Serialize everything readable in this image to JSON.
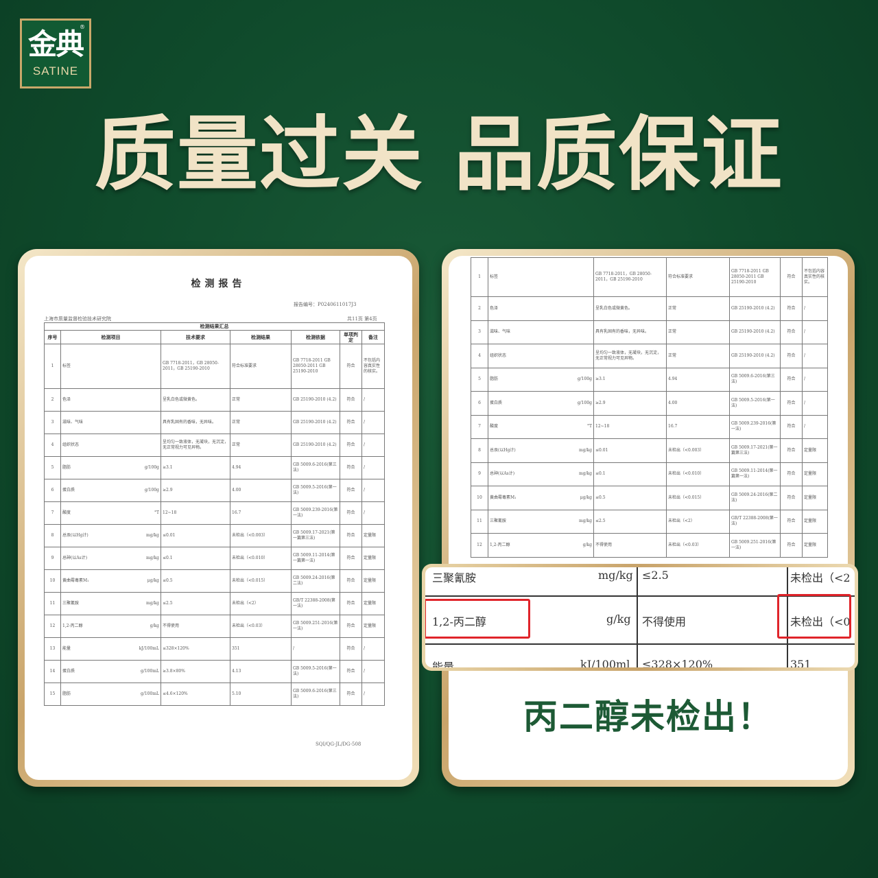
{
  "brand": {
    "name_cn": "金典",
    "name_en": "SATINE",
    "reg": "®"
  },
  "headline": {
    "left": "质量过关",
    "right": "品质保证"
  },
  "report": {
    "title": "检测报告",
    "report_no": "报告编号：P0240611017J3",
    "org": "上海市质量监督检验技术研究院",
    "pages": "共11页 第4页",
    "caption": "检测结果汇总",
    "footer": "SQI/QG-JL/DG-508",
    "headers": [
      "序号",
      "检测项目",
      "技术要求",
      "检测结果",
      "检测依据",
      "单项判定",
      "备注"
    ],
    "rows": [
      {
        "seq": "1",
        "item": "标签",
        "unit": "",
        "tech": "GB 7718-2011，GB 28050-2011，GB 25190-2010",
        "result": "符合标准要求",
        "basis": "GB 7718-2011 GB 28050-2011 GB 25190-2010",
        "judge": "符合",
        "note": "不包括内容真实性的核实。"
      },
      {
        "seq": "2",
        "item": "色泽",
        "unit": "",
        "tech": "呈乳白色或微黄色。",
        "result": "正常",
        "basis": "GB 25190-2010 (4.2)",
        "judge": "符合",
        "note": "/"
      },
      {
        "seq": "3",
        "item": "滋味、气味",
        "unit": "",
        "tech": "具有乳固有的香味，无异味。",
        "result": "正常",
        "basis": "GB 25190-2010 (4.2)",
        "judge": "符合",
        "note": "/"
      },
      {
        "seq": "4",
        "item": "组织状态",
        "unit": "",
        "tech": "呈均匀一致液体，无凝块，无沉淀，无正常视力可见异物。",
        "result": "正常",
        "basis": "GB 25190-2010 (4.2)",
        "judge": "符合",
        "note": "/"
      },
      {
        "seq": "5",
        "item": "脂肪",
        "unit": "g/100g",
        "tech": "≥3.1",
        "result": "4.94",
        "basis": "GB 5009.6-2016(第三法)",
        "judge": "符合",
        "note": "/"
      },
      {
        "seq": "6",
        "item": "蛋白质",
        "unit": "g/100g",
        "tech": "≥2.9",
        "result": "4.00",
        "basis": "GB 5009.5-2016(第一法)",
        "judge": "符合",
        "note": "/"
      },
      {
        "seq": "7",
        "item": "酸度",
        "unit": "°T",
        "tech": "12~18",
        "result": "16.7",
        "basis": "GB 5009.239-2016(第一法)",
        "judge": "符合",
        "note": "/"
      },
      {
        "seq": "8",
        "item": "总汞(以Hg计)",
        "unit": "mg/kg",
        "tech": "≤0.01",
        "result": "未检出（<0.003）",
        "basis": "GB 5009.17-2021(第一篇第三法)",
        "judge": "符合",
        "note": "定量限"
      },
      {
        "seq": "9",
        "item": "总砷(以As计)",
        "unit": "mg/kg",
        "tech": "≤0.1",
        "result": "未检出（<0.010）",
        "basis": "GB 5009.11-2014(第一篇第一法)",
        "judge": "符合",
        "note": "定量限"
      },
      {
        "seq": "10",
        "item": "黄曲霉毒素M₁",
        "unit": "μg/kg",
        "tech": "≤0.5",
        "result": "未检出（<0.015）",
        "basis": "GB 5009.24-2016(第二法)",
        "judge": "符合",
        "note": "定量限"
      },
      {
        "seq": "11",
        "item": "三聚氰胺",
        "unit": "mg/kg",
        "tech": "≤2.5",
        "result": "未检出（<2）",
        "basis": "GB/T 22388-2008(第一法)",
        "judge": "符合",
        "note": "定量限"
      },
      {
        "seq": "12",
        "item": "1,2-丙二醇",
        "unit": "g/kg",
        "tech": "不得使用",
        "result": "未检出（<0.03）",
        "basis": "GB 5009.251-2016(第一法)",
        "judge": "符合",
        "note": "定量限"
      },
      {
        "seq": "13",
        "item": "能量",
        "unit": "kJ/100mL",
        "tech": "≤328×120%",
        "result": "351",
        "basis": "/",
        "judge": "符合",
        "note": "/"
      },
      {
        "seq": "14",
        "item": "蛋白质",
        "unit": "g/100mL",
        "tech": "≥3.8×80%",
        "result": "4.13",
        "basis": "GB 5009.5-2016(第一法)",
        "judge": "符合",
        "note": "/"
      },
      {
        "seq": "15",
        "item": "脂肪",
        "unit": "g/100mL",
        "tech": "≤4.6×120%",
        "result": "5.10",
        "basis": "GB 5009.6-2016(第三法)",
        "judge": "符合",
        "note": "/"
      }
    ]
  },
  "zoom": {
    "rows": [
      {
        "item": "三聚氰胺",
        "unit": "mg/kg",
        "tech": "≤2.5",
        "result": "未检出（<2"
      },
      {
        "item": "1,2-丙二醇",
        "unit": "g/kg",
        "tech": "不得使用",
        "result": "未检出（<0"
      },
      {
        "item": "能量",
        "unit": "kJ/100ml",
        "tech": "≤328×120%",
        "result": "351"
      }
    ],
    "highlight_color": "#e0242a"
  },
  "slogan": "丙二醇未检出！",
  "colors": {
    "background": "#0f4a2b",
    "headline": "#f1e3c6",
    "gold": "#c9a46a",
    "slogan": "#1d5a35"
  }
}
